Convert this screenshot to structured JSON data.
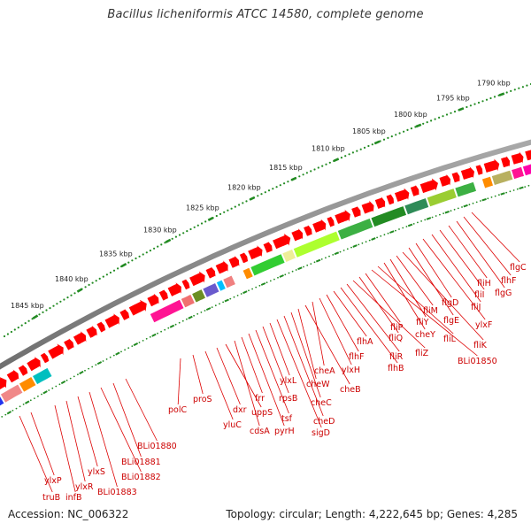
{
  "title": "Bacillus licheniformis ATCC 14580, complete genome",
  "footer": {
    "accession": "Accession: NC_006322",
    "summary": "Topology: circular; Length: 4,222,645 bp; Genes: 4,285"
  },
  "kbp_labels": [
    "1790 kbp",
    "1795 kbp",
    "1800 kbp",
    "1805 kbp",
    "1810 kbp",
    "1815 kbp",
    "1820 kbp",
    "1825 kbp",
    "1830 kbp",
    "1835 kbp",
    "1840 kbp",
    "1845 kbp"
  ],
  "gene_labels": [
    "flgC",
    "flhF",
    "flgG",
    "fliH",
    "fliI",
    "fliJ",
    "ylxF",
    "flgD",
    "flgE",
    "fliK",
    "fliM",
    "fliY",
    "cheY",
    "fliL",
    "BLi01850",
    "fliP",
    "fliQ",
    "fliZ",
    "fliR",
    "flhB",
    "flhA",
    "flhF",
    "ylxH",
    "cheA",
    "cheB",
    "cheW",
    "cheC",
    "cheD",
    "sigD",
    "ylxL",
    "rpsB",
    "tsf",
    "pyrH",
    "frr",
    "cdsA",
    "uppS",
    "dxr",
    "yluC",
    "proS",
    "polC",
    "BLi01880",
    "BLi01881",
    "BLi01882",
    "BLi01883",
    "ylxS",
    "ylxR",
    "infB",
    "ylxP",
    "truB"
  ],
  "colors": {
    "forward_genes": "#ff0000",
    "tick_marks": "#228b22",
    "label_lines": "#dd0000",
    "backbone": "#808080"
  }
}
